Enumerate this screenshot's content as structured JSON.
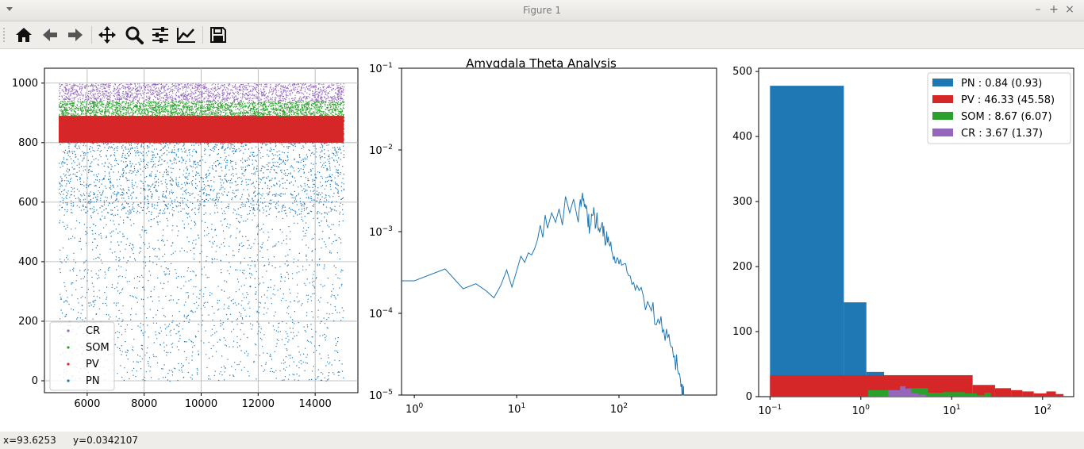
{
  "window": {
    "title": "Figure 1",
    "minimize": "–",
    "maximize": "+",
    "close": "×"
  },
  "toolbar": {
    "buttons": [
      "home-icon",
      "back-icon",
      "forward-icon",
      "pan-icon",
      "zoom-icon",
      "configure-subplots-icon",
      "edit-axis-icon",
      "save-icon"
    ]
  },
  "figure": {
    "suptitle": "Amygdala Theta Analysis"
  },
  "status": {
    "x_text": "x=93.6253",
    "y_text": "y=0.0342107"
  },
  "chart_data": [
    {
      "type": "scatter",
      "title": "",
      "xlabel": "",
      "ylabel": "",
      "xlim": [
        4500,
        15500
      ],
      "ylim": [
        -40,
        1050
      ],
      "xticks": [
        "6000",
        "8000",
        "10000",
        "12000",
        "14000"
      ],
      "yticks": [
        "0",
        "200",
        "400",
        "600",
        "800",
        "1000"
      ],
      "grid": true,
      "legend_position": "lower-left",
      "series": [
        {
          "name": "PN",
          "color": "#1f77b4",
          "x_range": [
            5000,
            15000
          ],
          "y_range": [
            0,
            800
          ]
        },
        {
          "name": "PV",
          "color": "#d62728",
          "x_range": [
            5000,
            15000
          ],
          "y_range": [
            800,
            890
          ]
        },
        {
          "name": "SOM",
          "color": "#2ca02c",
          "x_range": [
            5000,
            15000
          ],
          "y_range": [
            890,
            940
          ]
        },
        {
          "name": "CR",
          "color": "#9467bd",
          "x_range": [
            5000,
            15000
          ],
          "y_range": [
            940,
            1000
          ]
        }
      ],
      "legend_order": [
        "CR",
        "SOM",
        "PV",
        "PN"
      ]
    },
    {
      "type": "line",
      "title": "",
      "xlabel": "",
      "ylabel": "",
      "xscale": "log",
      "yscale": "log",
      "xlim": [
        0.75,
        900
      ],
      "ylim": [
        1e-05,
        0.1
      ],
      "xticks": [
        {
          "base": "10",
          "exp": "0"
        },
        {
          "base": "10",
          "exp": "1"
        },
        {
          "base": "10",
          "exp": "2"
        }
      ],
      "yticks": [
        {
          "base": "10",
          "exp": "−1"
        },
        {
          "base": "10",
          "exp": "−2"
        },
        {
          "base": "10",
          "exp": "−3"
        },
        {
          "base": "10",
          "exp": "−4"
        },
        {
          "base": "10",
          "exp": "−5"
        }
      ],
      "grid": false,
      "series": [
        {
          "name": "",
          "color": "#1f77b4",
          "x": [
            0.75,
            1,
            2,
            3,
            4,
            5,
            6,
            7,
            8,
            9,
            10,
            11,
            12,
            13,
            14,
            15,
            16,
            17,
            18,
            19,
            20,
            22,
            24,
            26,
            28,
            30,
            33,
            36,
            40,
            44,
            48,
            52,
            56,
            60,
            66,
            72,
            80,
            90,
            100,
            120,
            150,
            200,
            250,
            300,
            350,
            400,
            420,
            430
          ],
          "y": [
            0.00025,
            0.00025,
            0.00035,
            0.0002,
            0.00023,
            0.00019,
            0.000155,
            0.00022,
            0.00034,
            0.00021,
            0.00033,
            0.0005,
            0.00042,
            0.00055,
            0.00052,
            0.00062,
            0.0008,
            0.0012,
            0.00085,
            0.0016,
            0.0011,
            0.0017,
            0.0013,
            0.0019,
            0.0012,
            0.0027,
            0.0017,
            0.0025,
            0.0013,
            0.003,
            0.0021,
            0.0011,
            0.0016,
            0.0013,
            0.0011,
            0.0009,
            0.0007,
            0.0005,
            0.0004,
            0.00032,
            0.00022,
            0.00012,
            7.5e-05,
            5e-05,
            3e-05,
            1.5e-05,
            1e-05,
            1e-05
          ]
        }
      ]
    },
    {
      "type": "bar",
      "title": "",
      "xlabel": "",
      "ylabel": "",
      "xscale": "log",
      "xlim": [
        0.075,
        220
      ],
      "ylim": [
        0,
        505
      ],
      "xticks": [
        {
          "base": "10",
          "exp": "−1"
        },
        {
          "base": "10",
          "exp": "0"
        },
        {
          "base": "10",
          "exp": "1"
        },
        {
          "base": "10",
          "exp": "2"
        }
      ],
      "yticks": [
        "0",
        "100",
        "200",
        "300",
        "400",
        "500"
      ],
      "grid": false,
      "legend_position": "top-right",
      "series": [
        {
          "name": "PN : 0.84 (0.93)",
          "color": "#1f77b4",
          "bins": [
            [
              0.1,
              0.65,
              478
            ],
            [
              0.65,
              1.15,
              145
            ],
            [
              1.15,
              1.8,
              38
            ]
          ]
        },
        {
          "name": "PV : 46.33 (45.58)",
          "color": "#d62728",
          "bins": [
            [
              0.1,
              17,
              33
            ],
            [
              17,
              30,
              18
            ],
            [
              30,
              45,
              13
            ],
            [
              45,
              60,
              10
            ],
            [
              60,
              80,
              8
            ],
            [
              80,
              110,
              5
            ],
            [
              110,
              140,
              8
            ],
            [
              140,
              170,
              4
            ]
          ]
        },
        {
          "name": "SOM : 8.67 (6.07)",
          "color": "#2ca02c",
          "bins": [
            [
              1.2,
              2.2,
              10
            ],
            [
              2.2,
              3.2,
              7
            ],
            [
              3.2,
              5.5,
              13
            ],
            [
              5.5,
              8,
              6
            ],
            [
              8,
              14,
              7
            ],
            [
              14,
              19,
              5
            ],
            [
              19,
              23,
              2
            ],
            [
              23,
              27,
              6
            ]
          ]
        },
        {
          "name": "CR : 3.67 (1.37)",
          "color": "#9467bd",
          "bins": [
            [
              2.0,
              2.7,
              10
            ],
            [
              2.7,
              3.1,
              16
            ],
            [
              3.1,
              3.6,
              12
            ],
            [
              3.6,
              4.3,
              5
            ],
            [
              4.3,
              5.2,
              3
            ]
          ]
        }
      ]
    }
  ]
}
